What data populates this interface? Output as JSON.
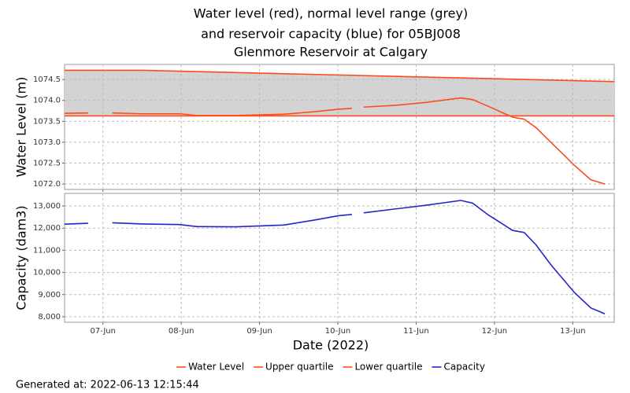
{
  "chart_data": [
    {
      "type": "line",
      "title": [
        "Water level (red), normal level range (grey)",
        "and reservoir capacity (blue) for 05BJ008",
        "Glenmore Reservoir at Calgary"
      ],
      "y_label": "Water Level (m)",
      "x": [
        6.51,
        6.81,
        6.96,
        7.12,
        7.5,
        7.98,
        8.2,
        8.7,
        9.31,
        9.71,
        10.01,
        10.18,
        10.25,
        10.33,
        10.72,
        11.12,
        11.57,
        11.72,
        11.92,
        12.23,
        12.38,
        12.53,
        12.72,
        13.02,
        13.23,
        13.41
      ],
      "xlim": [
        6.51,
        13.53
      ],
      "xticks": [
        7,
        8,
        9,
        10,
        11,
        12,
        13
      ],
      "ylim": [
        1071.87,
        1074.86
      ],
      "yticks": [
        {
          "value": 1072,
          "label": "1072.0"
        },
        {
          "value": 1072.5,
          "label": "1072.5"
        },
        {
          "value": 1073,
          "label": "1073.0"
        },
        {
          "value": 1073.5,
          "label": "1073.5"
        },
        {
          "value": 1074,
          "label": "1074.0"
        },
        {
          "value": 1074.5,
          "label": "1074.5"
        }
      ],
      "grid": true,
      "band_color": "#d3d3d3",
      "series": [
        {
          "name": "Water Level",
          "color": "#ff4a1a",
          "values": [
            1073.69,
            1073.7,
            null,
            1073.7,
            1073.68,
            1073.68,
            1073.64,
            1073.64,
            1073.67,
            1073.73,
            1073.79,
            1073.81,
            null,
            1073.84,
            1073.88,
            1073.95,
            1074.06,
            1074.02,
            1073.86,
            1073.6,
            1073.55,
            1073.35,
            1073.0,
            1072.45,
            1072.1,
            1072.0
          ]
        },
        {
          "name": "Upper quartile",
          "color": "#ff4a1a",
          "x": [
            6.51,
            7.5,
            13.53
          ],
          "values": [
            1074.72,
            1074.72,
            1074.45
          ]
        },
        {
          "name": "Lower quartile",
          "color": "#ff4a1a",
          "x": [
            6.51,
            13.53
          ],
          "values": [
            1073.63,
            1073.63
          ]
        }
      ]
    },
    {
      "type": "line",
      "y_label": "Capacity (dam3)",
      "x_label": "Date (2022)",
      "x": [
        6.51,
        6.81,
        6.96,
        7.12,
        7.5,
        7.98,
        8.2,
        8.7,
        9.31,
        9.71,
        10.01,
        10.18,
        10.25,
        10.33,
        10.72,
        11.12,
        11.57,
        11.72,
        11.92,
        12.23,
        12.38,
        12.53,
        12.72,
        13.02,
        13.23,
        13.41
      ],
      "xlim": [
        6.51,
        13.53
      ],
      "xticks": [
        {
          "value": 7,
          "label": "07-Jun"
        },
        {
          "value": 8,
          "label": "08-Jun"
        },
        {
          "value": 9,
          "label": "09-Jun"
        },
        {
          "value": 10,
          "label": "10-Jun"
        },
        {
          "value": 11,
          "label": "11-Jun"
        },
        {
          "value": 12,
          "label": "12-Jun"
        },
        {
          "value": 13,
          "label": "13-Jun"
        }
      ],
      "ylim": [
        7750,
        13570
      ],
      "yticks": [
        {
          "value": 8000,
          "label": "8,000"
        },
        {
          "value": 9000,
          "label": "9,000"
        },
        {
          "value": 10000,
          "label": "10,000"
        },
        {
          "value": 11000,
          "label": "11,000"
        },
        {
          "value": 12000,
          "label": "12,000"
        },
        {
          "value": 13000,
          "label": "13,000"
        }
      ],
      "grid": true,
      "series": [
        {
          "name": "Capacity",
          "color": "#2424c8",
          "values": [
            12180,
            12220,
            null,
            12240,
            12190,
            12160,
            12070,
            12060,
            12140,
            12370,
            12560,
            12620,
            null,
            12690,
            12860,
            13030,
            13250,
            13130,
            12600,
            11900,
            11800,
            11250,
            10350,
            9100,
            8400,
            8130
          ]
        }
      ]
    }
  ],
  "footer": "Generated at: 2022-06-13 12:15:44"
}
